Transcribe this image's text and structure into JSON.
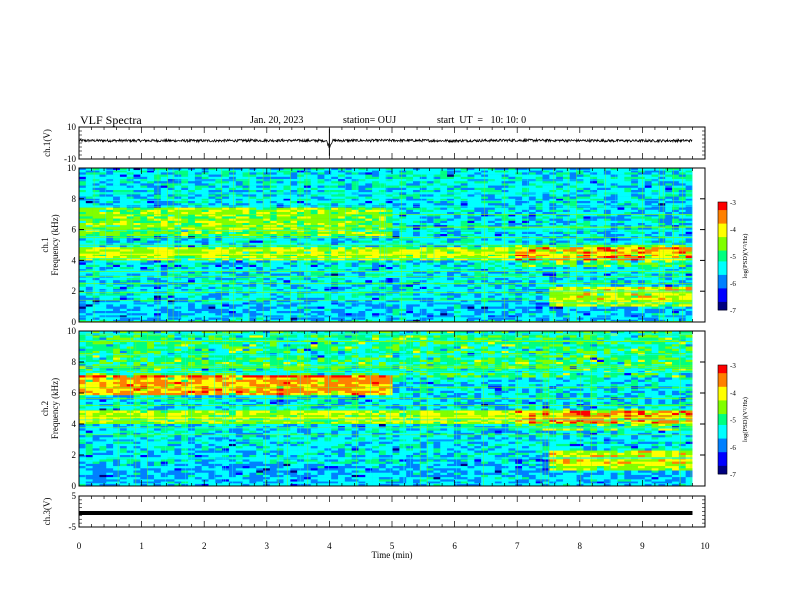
{
  "header": {
    "title": "VLF Spectra",
    "date": "Jan. 20, 2023",
    "station": "station= OUJ",
    "start": "start  UT  =   10: 10: 0"
  },
  "chart_data": [
    {
      "type": "line",
      "name": "ch1-waveform",
      "ylabel": "ch.1(V)",
      "ylim": [
        -10,
        10
      ],
      "yticks": [
        "10",
        "-10"
      ],
      "xlim": [
        0,
        10
      ],
      "x": [
        0,
        1,
        2,
        3,
        3.95,
        4.0,
        4.05,
        5,
        6,
        7,
        8,
        9,
        9.8
      ],
      "y": [
        1.5,
        1.5,
        1.4,
        1.6,
        1.5,
        -2.5,
        1.5,
        1.6,
        1.4,
        1.7,
        1.5,
        1.4,
        1.5
      ]
    },
    {
      "type": "heatmap",
      "name": "ch1-spectrogram",
      "ylabel": "ch.1\nFrequency (kHz)",
      "ylabel_lines": [
        "ch.1",
        "Frequency (kHz)"
      ],
      "xlim": [
        0,
        10
      ],
      "ylim": [
        0,
        10
      ],
      "yticks": [
        "0",
        "2",
        "4",
        "6",
        "8",
        "10"
      ],
      "colorbar": {
        "label": "log(PSD)(V²/Hz)",
        "range": [
          -7,
          -3
        ],
        "ticks": [
          "-3",
          "-4",
          "-5",
          "-6",
          "-7"
        ]
      }
    },
    {
      "type": "heatmap",
      "name": "ch2-spectrogram",
      "ylabel": "ch.2\nFrequency (kHz)",
      "ylabel_lines": [
        "ch.2",
        "Frequency (kHz)"
      ],
      "xlim": [
        0,
        10
      ],
      "ylim": [
        0,
        10
      ],
      "yticks": [
        "0",
        "2",
        "4",
        "6",
        "8",
        "10"
      ],
      "colorbar": {
        "label": "log(PSD)(V²/Hz)",
        "range": [
          -7,
          -3
        ],
        "ticks": [
          "-3",
          "-4",
          "-5",
          "-6",
          "-7"
        ]
      }
    },
    {
      "type": "line",
      "name": "ch3-waveform",
      "ylabel": "ch.3(V)",
      "ylim": [
        -5,
        5
      ],
      "yticks": [
        "5",
        "-5"
      ],
      "xlim": [
        0,
        10
      ],
      "x": [
        0,
        9.8
      ],
      "y": [
        -0.5,
        -0.5
      ]
    }
  ],
  "xaxis": {
    "label": "Time (min)",
    "ticks": [
      "0",
      "1",
      "2",
      "3",
      "4",
      "5",
      "6",
      "7",
      "8",
      "9",
      "10"
    ]
  },
  "colors": {
    "colormap": [
      "#000080",
      "#0000ff",
      "#0080ff",
      "#00ffff",
      "#00ff80",
      "#80ff00",
      "#ffff00",
      "#ff8000",
      "#ff0000"
    ],
    "trace": "#000000"
  }
}
